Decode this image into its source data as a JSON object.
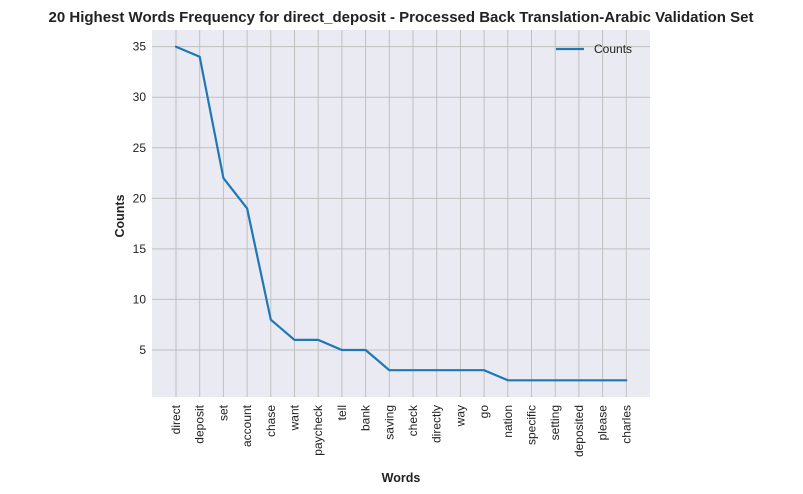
{
  "chart_data": {
    "type": "line",
    "title": "20 Highest Words Frequency for direct_deposit - Processed Back Translation-Arabic Validation Set",
    "xlabel": "Words",
    "ylabel": "Counts",
    "categories": [
      "direct",
      "deposit",
      "set",
      "account",
      "chase",
      "want",
      "paycheck",
      "tell",
      "bank",
      "saving",
      "check",
      "directly",
      "way",
      "go",
      "nation",
      "specific",
      "setting",
      "deposited",
      "please",
      "charles"
    ],
    "series": [
      {
        "name": "Counts",
        "values": [
          35,
          34,
          22,
          19,
          8,
          6,
          6,
          5,
          5,
          3,
          3,
          3,
          3,
          3,
          2,
          2,
          2,
          2,
          2,
          2
        ],
        "color": "#1f77b4"
      }
    ],
    "ylim": [
      0.35,
      36.65
    ],
    "yticks": [
      5,
      10,
      15,
      20,
      25,
      30,
      35
    ],
    "grid": true,
    "legend_position": "top-right",
    "plot_background": "#eaeaf2",
    "grid_color": "#c0c0c0"
  }
}
